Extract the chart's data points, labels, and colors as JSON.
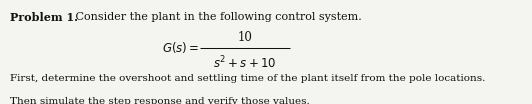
{
  "title_bold": "Problem 1.",
  "title_normal": " Consider the plant in the following control system.",
  "formula_numerator": "10",
  "formula_denominator": "$s^2 + s + 10$",
  "body_line1": "First, determine the overshoot and settling time of the plant itself from the pole locations.",
  "body_line2": "Then simulate the step response and verify those values.",
  "bg_color": "#f4f4f0",
  "text_color": "#111111",
  "font_size_title": 8.0,
  "font_size_body": 7.5,
  "font_size_formula": 8.5,
  "fig_width": 5.32,
  "fig_height": 1.04,
  "dpi": 100
}
